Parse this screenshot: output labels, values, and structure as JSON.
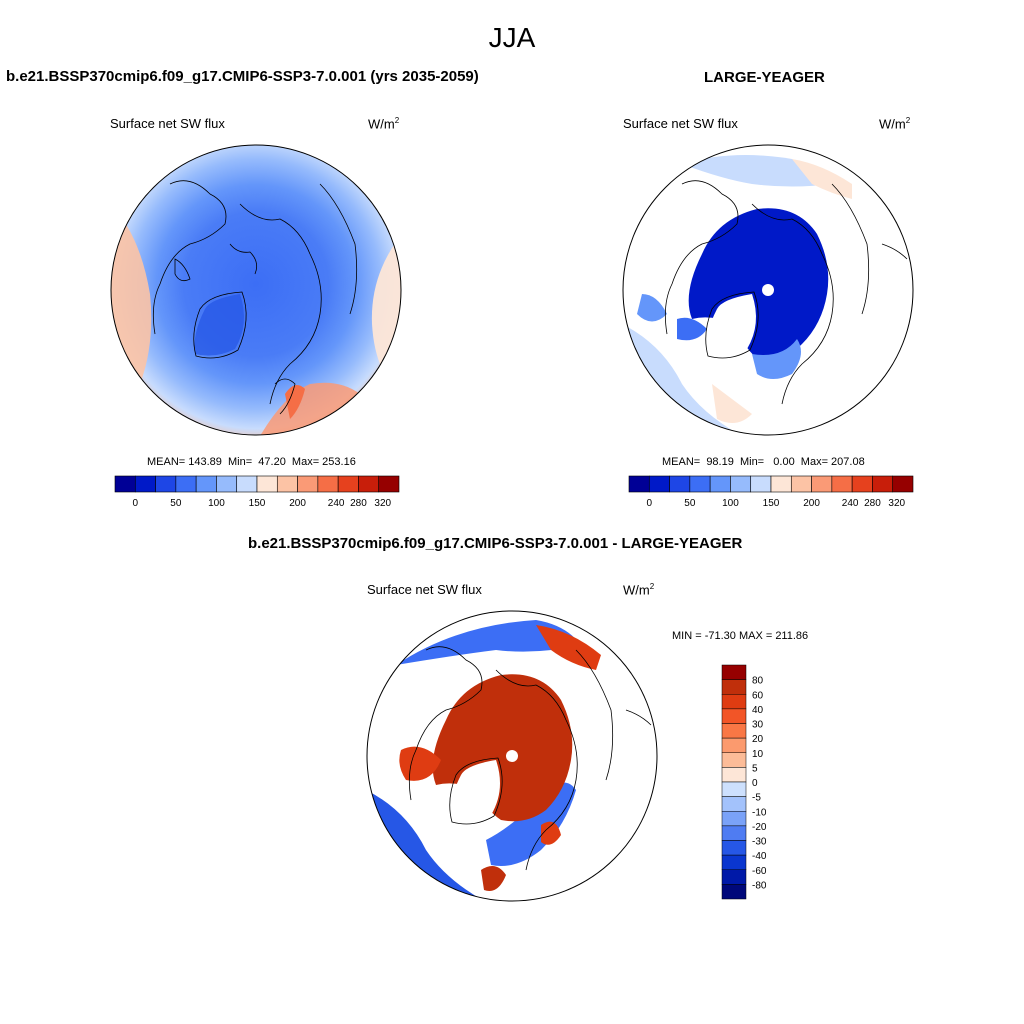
{
  "figure": {
    "title": "JJA"
  },
  "colors": {
    "abs_scale": [
      "#000096",
      "#0019c8",
      "#1e46e6",
      "#3c6ef5",
      "#6496fa",
      "#96bbfc",
      "#c8dcfd",
      "#fde6d7",
      "#fcc3a5",
      "#fa9a76",
      "#f56e46",
      "#e6411e",
      "#c81e0a",
      "#960000"
    ],
    "diff_scale": [
      "#960000",
      "#c02f0b",
      "#df3c12",
      "#f25527",
      "#f97745",
      "#fb9a6e",
      "#fcbc98",
      "#fde6d7",
      "#cde0fd",
      "#a3c2fb",
      "#7aa2f8",
      "#4f7cf2",
      "#2657e6",
      "#0a36cf",
      "#0019a8",
      "#00087a"
    ],
    "land_contour": "#000000"
  },
  "panels": {
    "left": {
      "title": "b.e21.BSSP370cmip6.f09_g17.CMIP6-SSP3-7.0.001 (yrs 2035-2059)",
      "variable": "Surface net SW flux",
      "units_base": "W/m",
      "units_sup": "2",
      "stats": "MEAN= 143.89  Min=  47.20  Max= 253.16"
    },
    "right": {
      "title": "LARGE-YEAGER",
      "variable": "Surface net SW flux",
      "units_base": "W/m",
      "units_sup": "2",
      "stats": "MEAN=  98.19  Min=   0.00  Max= 207.08"
    },
    "bottom": {
      "title": "b.e21.BSSP370cmip6.f09_g17.CMIP6-SSP3-7.0.001 - LARGE-YEAGER",
      "variable": "Surface net SW flux",
      "units_base": "W/m",
      "units_sup": "2",
      "stats": "MIN = -71.30 MAX = 211.86"
    }
  },
  "chart_data": [
    {
      "type": "heatmap",
      "title": "b.e21.BSSP370cmip6.f09_g17.CMIP6-SSP3-7.0.001 (yrs 2035-2059)",
      "projection": "north polar stereographic",
      "variable": "Surface net SW flux",
      "units": "W/m2",
      "mean": 143.89,
      "min": 47.2,
      "max": 253.16,
      "colorbar_ticks": [
        "0",
        "50",
        "100",
        "150",
        "200",
        "240",
        "280",
        "320"
      ]
    },
    {
      "type": "heatmap",
      "title": "LARGE-YEAGER",
      "projection": "north polar stereographic",
      "variable": "Surface net SW flux",
      "units": "W/m2",
      "mean": 98.19,
      "min": 0.0,
      "max": 207.08,
      "colorbar_ticks": [
        "0",
        "50",
        "100",
        "150",
        "200",
        "240",
        "280",
        "320"
      ]
    },
    {
      "type": "heatmap",
      "title": "b.e21.BSSP370cmip6.f09_g17.CMIP6-SSP3-7.0.001 - LARGE-YEAGER",
      "projection": "north polar stereographic",
      "variable": "Surface net SW flux",
      "units": "W/m2",
      "min": -71.3,
      "max": 211.86,
      "colorbar_ticks": [
        "80",
        "60",
        "40",
        "30",
        "20",
        "10",
        "5",
        "0",
        "-5",
        "-10",
        "-20",
        "-30",
        "-40",
        "-60",
        "-80"
      ]
    }
  ]
}
